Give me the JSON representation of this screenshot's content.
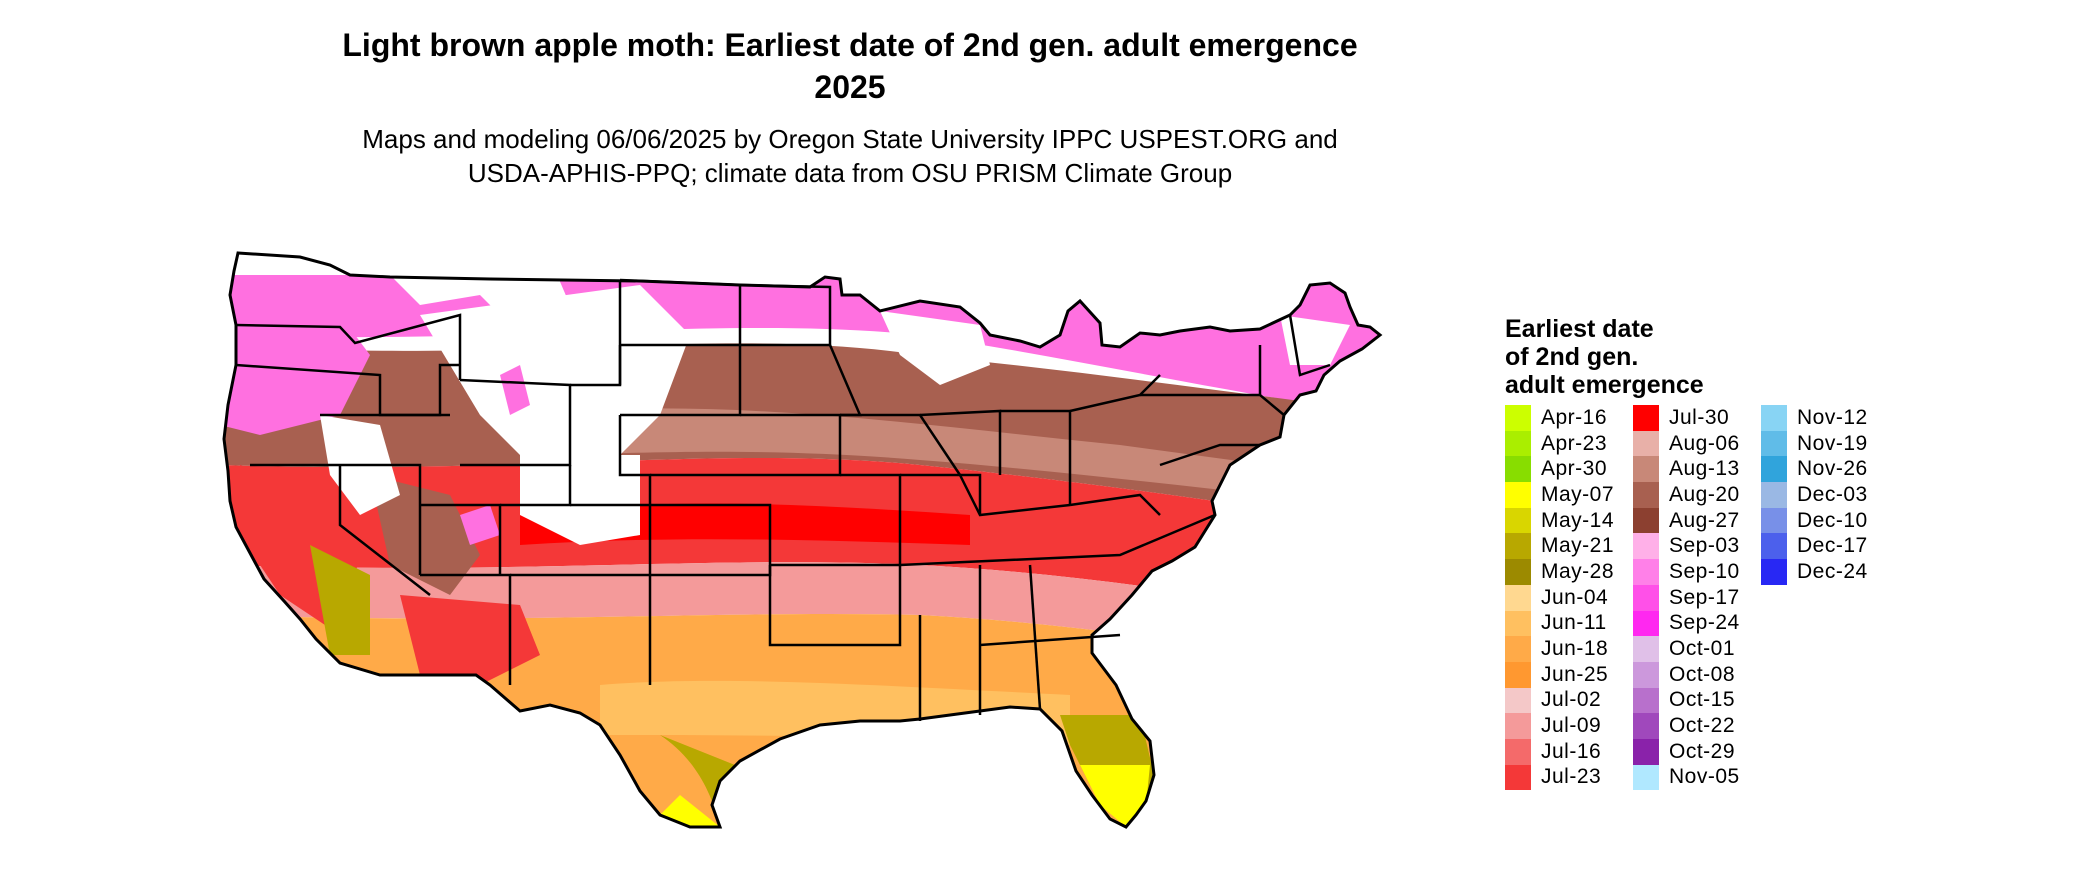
{
  "title_line1": "Light brown apple moth: Earliest date of 2nd gen. adult emergence",
  "title_line2": "2025",
  "subtitle_line1": "Maps and modeling 06/06/2025 by Oregon State University IPPC USPEST.ORG and",
  "subtitle_line2": "USDA-APHIS-PPQ; climate data from OSU PRISM Climate Group",
  "legend": {
    "title_line1": "Earliest date",
    "title_line2": "of 2nd gen.",
    "title_line3": "adult emergence",
    "entries": [
      {
        "label": "Apr-16",
        "color": "#ccff00"
      },
      {
        "label": "Apr-23",
        "color": "#aaee00"
      },
      {
        "label": "Apr-30",
        "color": "#88dd00"
      },
      {
        "label": "May-07",
        "color": "#ffff00"
      },
      {
        "label": "May-14",
        "color": "#d9d600"
      },
      {
        "label": "May-21",
        "color": "#b8a800"
      },
      {
        "label": "May-28",
        "color": "#9c8a00"
      },
      {
        "label": "Jun-04",
        "color": "#ffd890"
      },
      {
        "label": "Jun-11",
        "color": "#ffc060"
      },
      {
        "label": "Jun-18",
        "color": "#ffaa48"
      },
      {
        "label": "Jun-25",
        "color": "#ff9830"
      },
      {
        "label": "Jul-02",
        "color": "#f4c8c8"
      },
      {
        "label": "Jul-09",
        "color": "#f49a9a"
      },
      {
        "label": "Jul-16",
        "color": "#f46a6a"
      },
      {
        "label": "Jul-23",
        "color": "#f43838"
      },
      {
        "label": "Jul-30",
        "color": "#ff0000"
      },
      {
        "label": "Aug-06",
        "color": "#e8b0a8"
      },
      {
        "label": "Aug-13",
        "color": "#c88878"
      },
      {
        "label": "Aug-20",
        "color": "#a86050"
      },
      {
        "label": "Aug-27",
        "color": "#8c4030"
      },
      {
        "label": "Sep-03",
        "color": "#ffb0e8"
      },
      {
        "label": "Sep-10",
        "color": "#ff80e8"
      },
      {
        "label": "Sep-17",
        "color": "#ff50e8"
      },
      {
        "label": "Sep-24",
        "color": "#ff28f0"
      },
      {
        "label": "Oct-01",
        "color": "#e0c0e8"
      },
      {
        "label": "Oct-08",
        "color": "#cc98dc"
      },
      {
        "label": "Oct-15",
        "color": "#b870cc"
      },
      {
        "label": "Oct-22",
        "color": "#a048bc"
      },
      {
        "label": "Oct-29",
        "color": "#8a22aa"
      },
      {
        "label": "Nov-05",
        "color": "#b0e8ff"
      },
      {
        "label": "Nov-12",
        "color": "#88d4f4"
      },
      {
        "label": "Nov-19",
        "color": "#60bce8"
      },
      {
        "label": "Nov-26",
        "color": "#30a4dc"
      },
      {
        "label": "Dec-03",
        "color": "#9ab8e4"
      },
      {
        "label": "Dec-10",
        "color": "#7890e8"
      },
      {
        "label": "Dec-17",
        "color": "#4c60ec"
      },
      {
        "label": "Dec-24",
        "color": "#2828f4"
      }
    ]
  }
}
